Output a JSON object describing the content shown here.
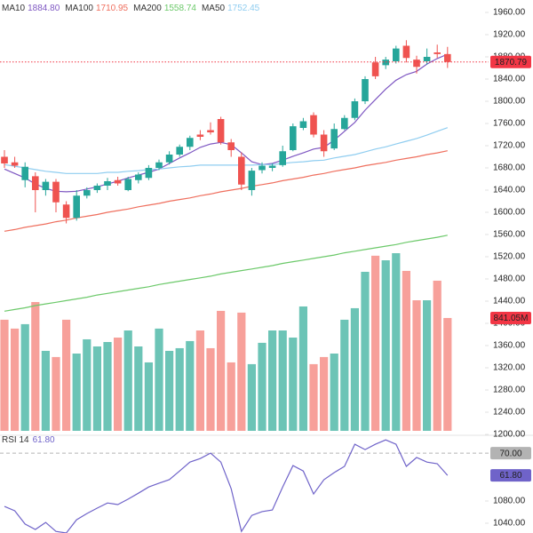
{
  "chart_data": {
    "type": "candlestick",
    "ylim": [
      1022.4,
      1982.4
    ],
    "yticks": [
      {
        "value": 1960,
        "label": "1960.00"
      },
      {
        "value": 1920,
        "label": "1920.00"
      },
      {
        "value": 1880,
        "label": "1880.00"
      },
      {
        "value": 1840,
        "label": "1840.00"
      },
      {
        "value": 1800,
        "label": "1800.00"
      },
      {
        "value": 1760,
        "label": "1760.00"
      },
      {
        "value": 1720,
        "label": "1720.00"
      },
      {
        "value": 1680,
        "label": "1680.00"
      },
      {
        "value": 1640,
        "label": "1640.00"
      },
      {
        "value": 1600,
        "label": "1600.00"
      },
      {
        "value": 1560,
        "label": "1560.00"
      },
      {
        "value": 1520,
        "label": "1520.00"
      },
      {
        "value": 1480,
        "label": "1480.00"
      },
      {
        "value": 1440,
        "label": "1440.00"
      },
      {
        "value": 1400,
        "label": "1400.00"
      },
      {
        "value": 1360,
        "label": "1360.00"
      },
      {
        "value": 1320,
        "label": "1320.00"
      },
      {
        "value": 1280,
        "label": "1280.00"
      },
      {
        "value": 1240,
        "label": "1240.00"
      },
      {
        "value": 1200,
        "label": "1200.00"
      },
      {
        "value": 1080,
        "label": "1080.00"
      },
      {
        "value": 1040,
        "label": "1040.00"
      }
    ],
    "up_color": "#26a69a",
    "down_color": "#ef5350",
    "last_price_color": "#f23645",
    "open": [
      1700,
      1690,
      1658,
      1665,
      1640,
      1655,
      1614,
      1590,
      1630,
      1640,
      1648,
      1658,
      1640,
      1658,
      1662,
      1680,
      1690,
      1704,
      1718,
      1740,
      1748,
      1768,
      1726,
      1700,
      1640,
      1676,
      1680,
      1685,
      1712,
      1752,
      1775,
      1740,
      1715,
      1750,
      1770,
      1800,
      1870,
      1865,
      1872,
      1900,
      1875,
      1872,
      1888,
      1885
    ],
    "high": [
      1712,
      1700,
      1690,
      1672,
      1660,
      1660,
      1620,
      1640,
      1645,
      1652,
      1662,
      1664,
      1664,
      1672,
      1685,
      1695,
      1710,
      1722,
      1738,
      1748,
      1762,
      1772,
      1732,
      1708,
      1680,
      1690,
      1688,
      1720,
      1760,
      1770,
      1780,
      1748,
      1760,
      1775,
      1805,
      1845,
      1880,
      1880,
      1900,
      1910,
      1882,
      1895,
      1902,
      1898
    ],
    "low": [
      1680,
      1680,
      1645,
      1600,
      1630,
      1600,
      1580,
      1585,
      1625,
      1635,
      1640,
      1648,
      1638,
      1652,
      1658,
      1676,
      1686,
      1700,
      1712,
      1730,
      1740,
      1722,
      1700,
      1640,
      1630,
      1670,
      1674,
      1682,
      1710,
      1748,
      1735,
      1700,
      1712,
      1748,
      1766,
      1795,
      1840,
      1858,
      1868,
      1870,
      1850,
      1866,
      1878,
      1860
    ],
    "close": [
      1688,
      1684,
      1682,
      1640,
      1655,
      1618,
      1590,
      1630,
      1640,
      1648,
      1656,
      1652,
      1660,
      1668,
      1680,
      1690,
      1704,
      1718,
      1734,
      1736,
      1744,
      1726,
      1712,
      1650,
      1675,
      1684,
      1684,
      1710,
      1755,
      1764,
      1740,
      1710,
      1750,
      1770,
      1800,
      1840,
      1845,
      1875,
      1895,
      1878,
      1862,
      1880,
      1885,
      1870.79
    ],
    "volume": {
      "values": [
        828,
        762,
        795,
        960,
        596,
        550,
        828,
        576,
        682,
        629,
        662,
        695,
        748,
        629,
        510,
        762,
        596,
        616,
        669,
        748,
        616,
        894,
        510,
        881,
        497,
        656,
        748,
        748,
        695,
        927,
        497,
        550,
        576,
        828,
        914,
        1185,
        1305,
        1271,
        1324,
        1192,
        973,
        973,
        1119,
        841.05
      ],
      "last_label": "841.05M",
      "up_color": "#6cc4b6",
      "down_color": "#f7a09a"
    },
    "ma": [
      {
        "name": "MA10",
        "color": "#7e57c2",
        "last_label": "1884.80",
        "values": [
          1678,
          1670,
          1662,
          1651,
          1643,
          1638,
          1637,
          1638,
          1642,
          1646,
          1651,
          1656,
          1662,
          1667,
          1672,
          1678,
          1688,
          1698,
          1707,
          1717,
          1723,
          1726,
          1722,
          1707,
          1691,
          1686,
          1688,
          1694,
          1701,
          1707,
          1714,
          1717,
          1730,
          1746,
          1762,
          1784,
          1803,
          1822,
          1838,
          1848,
          1854,
          1867,
          1877,
          1884.8
        ]
      },
      {
        "name": "MA100",
        "color": "#ef6f5e",
        "last_label": "1710.95",
        "values": [
          1566,
          1569,
          1573,
          1576,
          1579,
          1583,
          1586,
          1590,
          1593,
          1596,
          1600,
          1603,
          1606,
          1610,
          1613,
          1616,
          1620,
          1623,
          1626,
          1630,
          1633,
          1637,
          1640,
          1643,
          1647,
          1650,
          1653,
          1657,
          1660,
          1663,
          1667,
          1670,
          1674,
          1677,
          1680,
          1684,
          1687,
          1690,
          1694,
          1697,
          1700,
          1704,
          1707,
          1710.95
        ]
      },
      {
        "name": "MA200",
        "color": "#6cc96a",
        "last_label": "1558.74",
        "values": [
          1422,
          1425,
          1428,
          1432,
          1435,
          1438,
          1441,
          1444,
          1447,
          1451,
          1454,
          1457,
          1460,
          1463,
          1466,
          1470,
          1473,
          1476,
          1479,
          1482,
          1485,
          1489,
          1492,
          1495,
          1498,
          1501,
          1504,
          1508,
          1511,
          1514,
          1517,
          1520,
          1523,
          1527,
          1530,
          1533,
          1536,
          1539,
          1542,
          1546,
          1549,
          1552,
          1555,
          1558.74
        ]
      },
      {
        "name": "MA50",
        "color": "#8fcdf0",
        "last_label": "1752.45",
        "values": [
          1686,
          1683,
          1680,
          1677,
          1674,
          1672,
          1670,
          1670,
          1670,
          1670,
          1672,
          1672,
          1674,
          1675,
          1677,
          1678,
          1680,
          1682,
          1683,
          1685,
          1685,
          1685,
          1685,
          1685,
          1685,
          1686,
          1686,
          1688,
          1690,
          1691,
          1693,
          1694,
          1698,
          1701,
          1704,
          1709,
          1714,
          1718,
          1723,
          1728,
          1733,
          1739,
          1746,
          1752.45
        ]
      }
    ],
    "rsi": {
      "name": "RSI 14",
      "color": "#6f63c9",
      "last_label": "61.80",
      "ylim": [
        40.5,
        76.6
      ],
      "level": {
        "value": 70,
        "label": "70.00"
      },
      "values": [
        50.3,
        48.7,
        43.8,
        41.8,
        44.4,
        41.1,
        40.5,
        45.4,
        47.7,
        49.7,
        51.6,
        51.0,
        53.0,
        55.2,
        57.5,
        58.9,
        60.2,
        63.4,
        66.7,
        68.0,
        70.0,
        66.7,
        56.9,
        41.1,
        47.0,
        48.4,
        49.0,
        57.5,
        65.4,
        63.4,
        54.9,
        60.2,
        62.8,
        65.1,
        73.3,
        71.3,
        73.3,
        74.9,
        73.3,
        65.1,
        68.4,
        66.7,
        66.1,
        61.8
      ]
    }
  }
}
